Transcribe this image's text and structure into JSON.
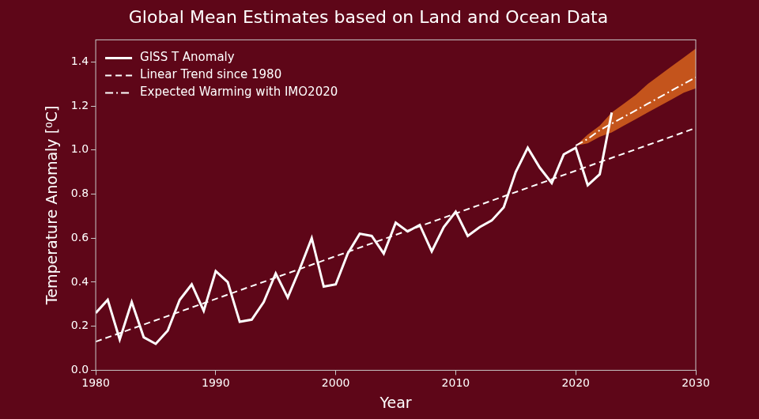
{
  "chart_data": {
    "type": "line",
    "title": "Global Mean Estimates based on Land and Ocean Data",
    "x_label": "Year",
    "y_label": "Temperature Anomaly [⁰C]",
    "xlim": [
      1980,
      2030
    ],
    "xticks": [
      1980,
      1990,
      2000,
      2010,
      2020,
      2030
    ],
    "ylim": [
      0,
      1.5
    ],
    "yticks": [
      {
        "value": 0,
        "label": "0.0"
      },
      {
        "value": 0.2,
        "label": "0.2"
      },
      {
        "value": 0.4,
        "label": "0.4"
      },
      {
        "value": 0.6,
        "label": "0.6"
      },
      {
        "value": 0.8,
        "label": "0.8"
      },
      {
        "value": 1.0,
        "label": "1.0"
      },
      {
        "value": 1.2,
        "label": "1.2"
      },
      {
        "value": 1.4,
        "label": "1.4"
      }
    ],
    "grid": false,
    "legend": "upper left",
    "series": [
      {
        "name": "GISS T Anomaly",
        "color": "#ffffff",
        "line_style": "solid",
        "x": [
          1980,
          1981,
          1982,
          1983,
          1984,
          1985,
          1986,
          1987,
          1988,
          1989,
          1990,
          1991,
          1992,
          1993,
          1994,
          1995,
          1996,
          1997,
          1998,
          1999,
          2000,
          2001,
          2002,
          2003,
          2004,
          2005,
          2006,
          2007,
          2008,
          2009,
          2010,
          2011,
          2012,
          2013,
          2014,
          2015,
          2016,
          2017,
          2018,
          2019,
          2020,
          2021,
          2022,
          2023
        ],
        "values": [
          0.26,
          0.32,
          0.14,
          0.31,
          0.15,
          0.12,
          0.18,
          0.32,
          0.39,
          0.27,
          0.45,
          0.4,
          0.22,
          0.23,
          0.31,
          0.44,
          0.33,
          0.46,
          0.6,
          0.38,
          0.39,
          0.53,
          0.62,
          0.61,
          0.53,
          0.67,
          0.63,
          0.66,
          0.54,
          0.65,
          0.72,
          0.61,
          0.65,
          0.68,
          0.74,
          0.9,
          1.01,
          0.92,
          0.85,
          0.98,
          1.01,
          0.84,
          0.89,
          1.17
        ]
      },
      {
        "name": "Linear Trend since 1980",
        "color": "#ffffff",
        "line_style": "dashed",
        "x": [
          1980,
          2030
        ],
        "values": [
          0.13,
          1.1
        ]
      },
      {
        "name": "Expected Warming with IMO2020",
        "color": "#ffffff",
        "line_style": "dashdot",
        "x": [
          2020,
          2021,
          2022,
          2023,
          2024,
          2025,
          2026,
          2027,
          2028,
          2029,
          2030
        ],
        "values": [
          1.02,
          1.05,
          1.09,
          1.12,
          1.15,
          1.18,
          1.21,
          1.24,
          1.27,
          1.3,
          1.33
        ]
      },
      {
        "type": "band",
        "color": "#c4541c",
        "x": [
          2020,
          2021,
          2022,
          2023,
          2024,
          2025,
          2026,
          2027,
          2028,
          2029,
          2030
        ],
        "lower": [
          1.02,
          1.03,
          1.06,
          1.08,
          1.11,
          1.14,
          1.17,
          1.2,
          1.23,
          1.26,
          1.28
        ],
        "upper": [
          1.02,
          1.07,
          1.11,
          1.17,
          1.21,
          1.25,
          1.3,
          1.34,
          1.38,
          1.42,
          1.46
        ]
      }
    ]
  }
}
